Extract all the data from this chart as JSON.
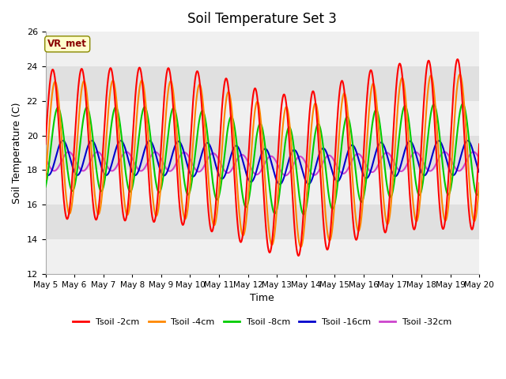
{
  "title": "Soil Temperature Set 3",
  "xlabel": "Time",
  "ylabel": "Soil Temperature (C)",
  "ylim": [
    12,
    26
  ],
  "yticks": [
    12,
    14,
    16,
    18,
    20,
    22,
    24,
    26
  ],
  "x_tick_labels": [
    "May 5",
    "May 6",
    "May 7",
    "May 8",
    "May 9",
    "May 10",
    "May 11",
    "May 12",
    "May 13",
    "May 14",
    "May 15",
    "May 16",
    "May 17",
    "May 18",
    "May 19",
    "May 20"
  ],
  "series_colors": {
    "Tsoil -2cm": "#ff0000",
    "Tsoil -4cm": "#ff8800",
    "Tsoil -8cm": "#00cc00",
    "Tsoil -16cm": "#0000cc",
    "Tsoil -32cm": "#cc44cc"
  },
  "annotation_text": "VR_met",
  "annotation_color": "#880000",
  "annotation_bg": "#ffffcc",
  "annotation_edge": "#888800",
  "bg_light": "#f0f0f0",
  "bg_dark": "#e0e0e0",
  "linewidth": 1.5,
  "figsize": [
    6.4,
    4.8
  ],
  "dpi": 100
}
